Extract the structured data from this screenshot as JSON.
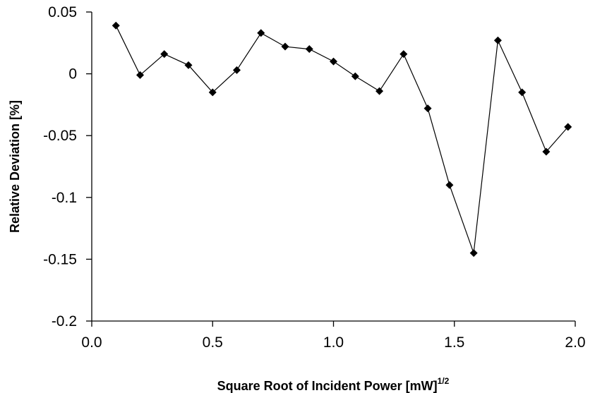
{
  "chart_data": {
    "type": "scatter",
    "title": "",
    "xlabel": "Square Root of Incident Power [mW]",
    "xlabel_superscript": "1/2",
    "ylabel": "Relative Deviation [%]",
    "xlim": [
      0.0,
      2.0
    ],
    "ylim": [
      -0.2,
      0.05
    ],
    "xticks": [
      0.0,
      0.5,
      1.0,
      1.5,
      2.0
    ],
    "xtick_labels": [
      "0.0",
      "0.5",
      "1.0",
      "1.5",
      "2.0"
    ],
    "yticks": [
      0.05,
      0,
      -0.05,
      -0.1,
      -0.15,
      -0.2
    ],
    "ytick_labels": [
      "0.05",
      "0",
      "-0.05",
      "-0.1",
      "-0.15",
      "-0.2"
    ],
    "grid": false,
    "legend": "none",
    "marker": "diamond",
    "line": "straight segments connecting points",
    "series_color": "#000000",
    "series": [
      {
        "x": [
          0.1,
          0.2,
          0.3,
          0.4,
          0.5,
          0.6,
          0.7,
          0.8,
          0.9,
          1.0,
          1.09,
          1.19,
          1.29,
          1.39,
          1.48,
          1.58,
          1.68,
          1.78,
          1.88,
          1.97
        ],
        "y": [
          0.039,
          -0.001,
          0.016,
          0.007,
          -0.015,
          0.003,
          0.033,
          0.022,
          0.02,
          0.01,
          -0.002,
          -0.014,
          0.016,
          -0.028,
          -0.09,
          -0.145,
          0.027,
          -0.015,
          -0.063,
          -0.043
        ]
      }
    ]
  }
}
